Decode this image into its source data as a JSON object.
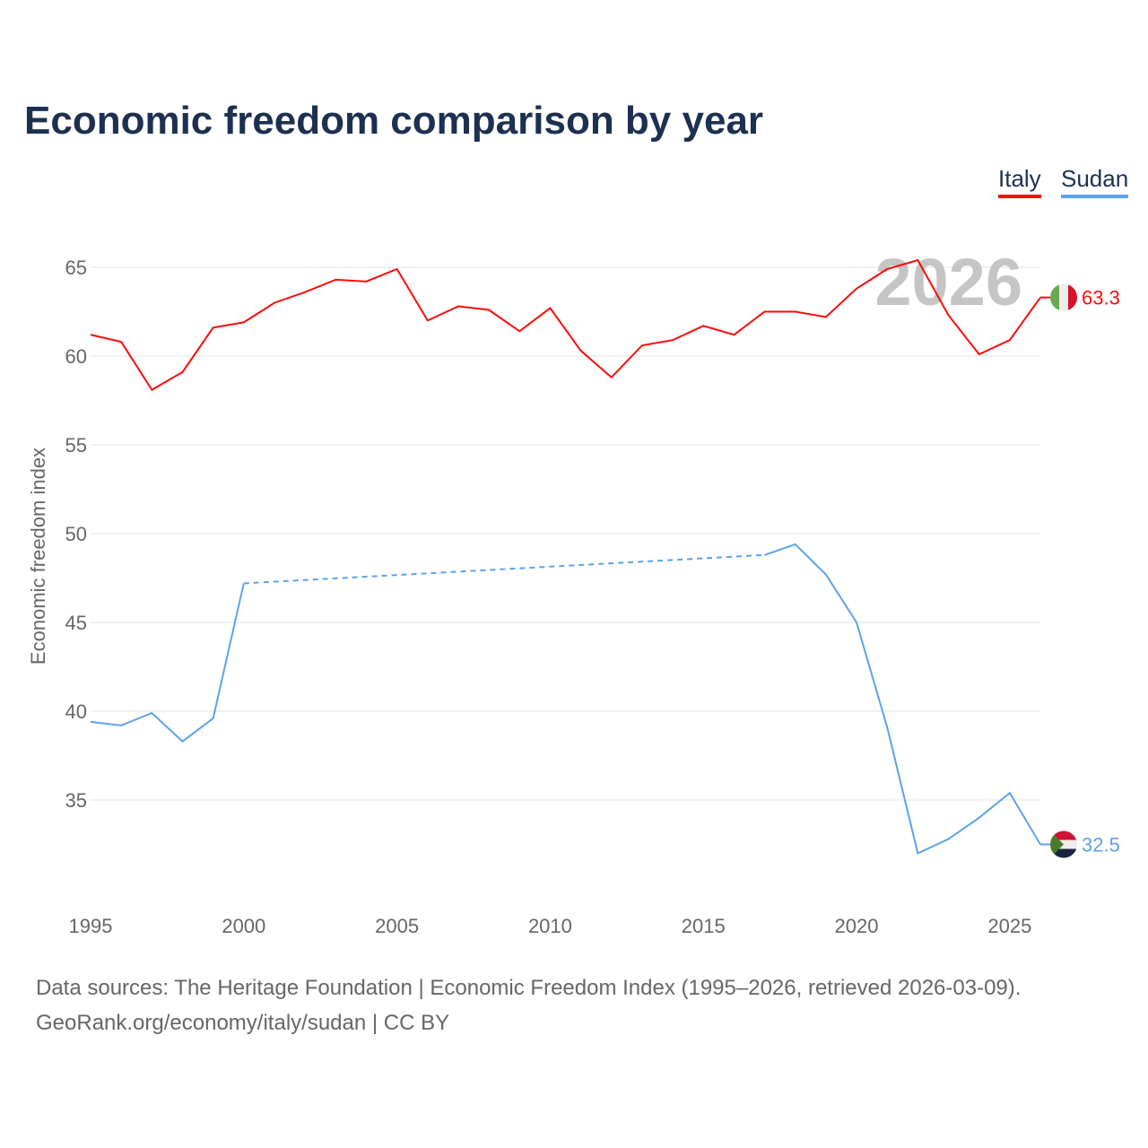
{
  "title": "Economic freedom comparison by year",
  "source_line1": "Data sources: The Heritage Foundation | Economic Freedom Index (1995–2026, retrieved 2026-03-09).",
  "source_line2": "GeoRank.org/economy/italy/sudan | CC BY",
  "chart_data": {
    "type": "line",
    "title": "Economic freedom comparison by year",
    "xlabel": "",
    "ylabel": "Economic freedom index",
    "xlim": [
      1995,
      2026
    ],
    "ylim": [
      30,
      67
    ],
    "xticks": [
      1995,
      2000,
      2005,
      2010,
      2015,
      2020,
      2025
    ],
    "yticks": [
      35,
      40,
      45,
      50,
      55,
      60,
      65
    ],
    "watermark_year": "2026",
    "legend_position": "top-right",
    "series": [
      {
        "name": "Italy",
        "color": "#ff0a0a",
        "end_label": "63.3",
        "flag": "italy",
        "x": [
          1995,
          1996,
          1997,
          1998,
          1999,
          2000,
          2001,
          2002,
          2003,
          2004,
          2005,
          2006,
          2007,
          2008,
          2009,
          2010,
          2011,
          2012,
          2013,
          2014,
          2015,
          2016,
          2017,
          2018,
          2019,
          2020,
          2021,
          2022,
          2023,
          2024,
          2025,
          2026
        ],
        "values": [
          61.2,
          60.8,
          58.1,
          59.1,
          61.6,
          61.9,
          63.0,
          63.6,
          64.3,
          64.2,
          64.9,
          62.0,
          62.8,
          62.6,
          61.4,
          62.7,
          60.3,
          58.8,
          60.6,
          60.9,
          61.7,
          61.2,
          62.5,
          62.5,
          62.2,
          63.8,
          64.9,
          65.4,
          62.3,
          60.1,
          60.9,
          63.3
        ]
      },
      {
        "name": "Sudan",
        "color": "#5ba3ea",
        "end_label": "32.5",
        "flag": "sudan",
        "dashed_gap": [
          2000,
          2017
        ],
        "x": [
          1995,
          1996,
          1997,
          1998,
          1999,
          2000,
          2017,
          2018,
          2019,
          2020,
          2021,
          2022,
          2023,
          2024,
          2025,
          2026
        ],
        "values": [
          39.4,
          39.2,
          39.9,
          38.3,
          39.6,
          47.2,
          48.8,
          49.4,
          47.7,
          45.0,
          39.1,
          32.0,
          32.8,
          34.0,
          35.4,
          32.5
        ]
      }
    ]
  }
}
